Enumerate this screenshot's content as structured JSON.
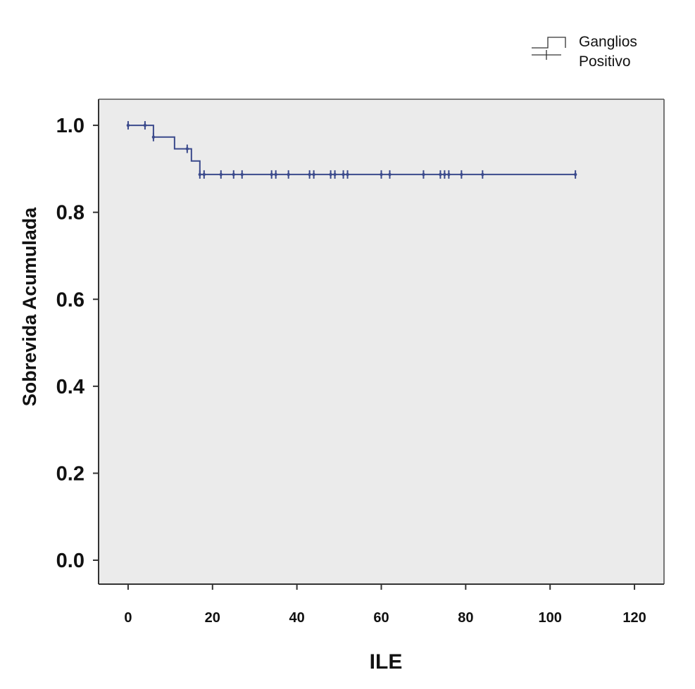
{
  "chart_data": {
    "type": "line",
    "subtype": "kaplan-meier",
    "title": "",
    "xlabel": "ILE",
    "ylabel": "Sobrevida Acumulada",
    "xlim": [
      -7,
      127
    ],
    "ylim": [
      -0.055,
      1.06
    ],
    "x_ticks": [
      0,
      20,
      40,
      60,
      80,
      100,
      120
    ],
    "x_tick_labels": [
      "0",
      "20",
      "40",
      "60",
      "80",
      "100",
      "120"
    ],
    "y_ticks": [
      0.0,
      0.2,
      0.4,
      0.6,
      0.8,
      1.0
    ],
    "y_tick_labels": [
      "0.0",
      "0.2",
      "0.4",
      "0.6",
      "0.8",
      "1.0"
    ],
    "grid": false,
    "legend_position": "top-right",
    "plot_background": "#ebebeb",
    "series": [
      {
        "name": "Ganglios Positivo",
        "color": "#3b4a8c",
        "steps": [
          {
            "x": 0,
            "y": 1.0
          },
          {
            "x": 6,
            "y": 0.973
          },
          {
            "x": 11,
            "y": 0.946
          },
          {
            "x": 15,
            "y": 0.918
          },
          {
            "x": 17,
            "y": 0.887
          },
          {
            "x": 106,
            "y": 0.887
          }
        ],
        "censored": [
          {
            "x": 0,
            "y": 1.0
          },
          {
            "x": 4,
            "y": 1.0
          },
          {
            "x": 6,
            "y": 0.973
          },
          {
            "x": 14,
            "y": 0.946
          },
          {
            "x": 17,
            "y": 0.887
          },
          {
            "x": 18,
            "y": 0.887
          },
          {
            "x": 22,
            "y": 0.887
          },
          {
            "x": 25,
            "y": 0.887
          },
          {
            "x": 27,
            "y": 0.887
          },
          {
            "x": 34,
            "y": 0.887
          },
          {
            "x": 35,
            "y": 0.887
          },
          {
            "x": 38,
            "y": 0.887
          },
          {
            "x": 43,
            "y": 0.887
          },
          {
            "x": 44,
            "y": 0.887
          },
          {
            "x": 48,
            "y": 0.887
          },
          {
            "x": 49,
            "y": 0.887
          },
          {
            "x": 51,
            "y": 0.887
          },
          {
            "x": 52,
            "y": 0.887
          },
          {
            "x": 60,
            "y": 0.887
          },
          {
            "x": 62,
            "y": 0.887
          },
          {
            "x": 70,
            "y": 0.887
          },
          {
            "x": 74,
            "y": 0.887
          },
          {
            "x": 75,
            "y": 0.887
          },
          {
            "x": 76,
            "y": 0.887
          },
          {
            "x": 79,
            "y": 0.887
          },
          {
            "x": 84,
            "y": 0.887
          },
          {
            "x": 106,
            "y": 0.887
          }
        ]
      }
    ]
  },
  "legend": {
    "line1": "Ganglios",
    "line2": "Positivo"
  }
}
